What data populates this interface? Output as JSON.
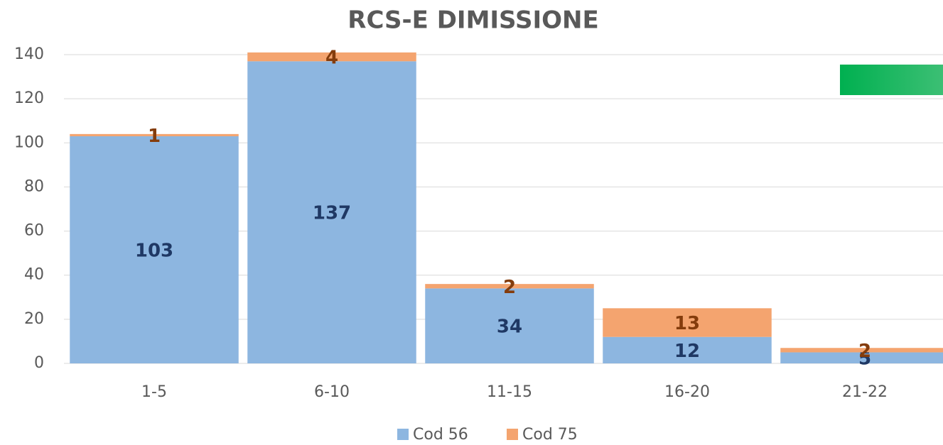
{
  "chart_data": {
    "type": "stacked-bar",
    "title": "RCS-E DIMISSIONE",
    "categories": [
      "1-5",
      "6-10",
      "11-15",
      "16-20",
      "21-22"
    ],
    "series": [
      {
        "name": "Cod 56",
        "color": "#8db6e0",
        "label_color": "#1f3864",
        "values": [
          103,
          137,
          34,
          12,
          5
        ]
      },
      {
        "name": "Cod 75",
        "color": "#f4a46f",
        "label_color": "#843c0c",
        "values": [
          1,
          4,
          2,
          13,
          2
        ]
      }
    ],
    "ylim": [
      0,
      140
    ],
    "yticks": [
      0,
      20,
      40,
      60,
      80,
      100,
      120,
      140
    ],
    "grid": true,
    "legend": "bottom"
  }
}
